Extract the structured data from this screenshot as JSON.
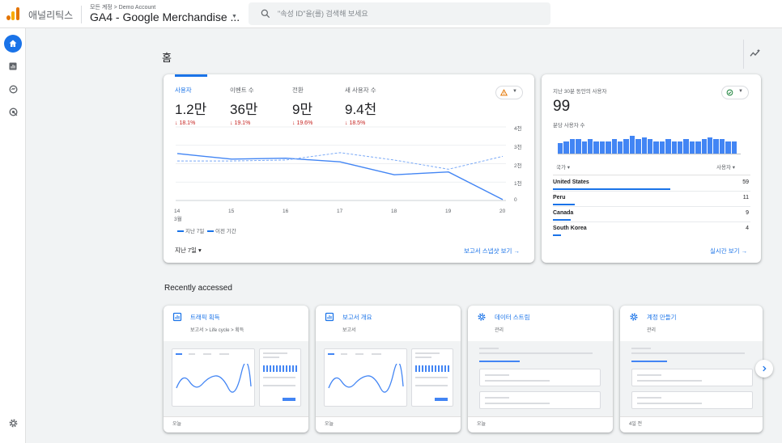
{
  "header": {
    "app_name": "애널리틱스",
    "breadcrumb": "모든 계정 > Demo Account",
    "property_name": "GA4 - Google Merchandise ...",
    "search_placeholder": "\"속성 ID\"을(를) 검색해 보세요"
  },
  "page": {
    "title": "홈"
  },
  "colors": {
    "accent": "#1a73e8",
    "negative": "#c5221f",
    "success": "#188038",
    "warning": "#e37400"
  },
  "icons": [
    "analytics-logo",
    "search-icon",
    "home-icon",
    "reports-icon",
    "explore-icon",
    "advertising-icon",
    "settings-icon",
    "insights-icon",
    "warning-icon",
    "check-circle-icon",
    "chevron-right-icon"
  ],
  "overview": {
    "metrics": [
      {
        "label": "사용자",
        "value": "1.2만",
        "change": "↓ 18.1%"
      },
      {
        "label": "이벤트 수",
        "value": "36만",
        "change": "↓ 19.1%"
      },
      {
        "label": "전환",
        "value": "9만",
        "change": "↓ 19.6%"
      },
      {
        "label": "새 사용자 수",
        "value": "9.4천",
        "change": "↓ 18.5%"
      }
    ],
    "legend_current": "지난 7일",
    "legend_previous": "이전 기간",
    "period_label": "지난 7일 ▾",
    "report_link": "보고서 스냅샷 보기 →"
  },
  "chart_data": {
    "type": "line",
    "x": [
      "14 3월",
      "15",
      "16",
      "17",
      "18",
      "19",
      "20"
    ],
    "y_ticks": [
      "4천",
      "3천",
      "2천",
      "1천",
      "0"
    ],
    "ylim": [
      0,
      4000
    ],
    "series": [
      {
        "name": "지난 7일",
        "values": [
          2550,
          2250,
          2300,
          2100,
          1400,
          1550,
          50
        ]
      },
      {
        "name": "이전 기간",
        "values": [
          2150,
          2150,
          2200,
          2600,
          2200,
          1700,
          2400
        ]
      }
    ],
    "legend": "bottom-left",
    "grid": true
  },
  "realtime": {
    "title": "지난 30분 동안의 사용자",
    "value": "99",
    "subtitle": "분당 사용자 수",
    "minute_bars": [
      3,
      3.5,
      4,
      4,
      3.5,
      4,
      3.5,
      3.5,
      3.5,
      4,
      3.5,
      4,
      5,
      4,
      4.5,
      4,
      3.5,
      3.5,
      4,
      3.5,
      3.5,
      4,
      3.5,
      3.5,
      4,
      4.5,
      4,
      4,
      3.5,
      3.5
    ],
    "col_country": "국가 ▾",
    "col_users": "사용자 ▾",
    "countries": [
      {
        "name": "United States",
        "users": "59",
        "share": 0.59
      },
      {
        "name": "Peru",
        "users": "11",
        "share": 0.11
      },
      {
        "name": "Canada",
        "users": "9",
        "share": 0.09
      },
      {
        "name": "South Korea",
        "users": "4",
        "share": 0.04
      }
    ],
    "link": "실시간 보기 →"
  },
  "recent": {
    "title": "Recently accessed",
    "cards": [
      {
        "title": "트래픽 획득",
        "sub": "보고서 > Life cycle > 획득",
        "time": "오늘",
        "icon": "reports-icon"
      },
      {
        "title": "보고서 개요",
        "sub": "보고서",
        "time": "오늘",
        "icon": "reports-icon"
      },
      {
        "title": "데이터 스트림",
        "sub": "관리",
        "time": "오늘",
        "icon": "settings-icon"
      },
      {
        "title": "계정 만들기",
        "sub": "관리",
        "time": "4일 전",
        "icon": "settings-icon"
      }
    ]
  }
}
